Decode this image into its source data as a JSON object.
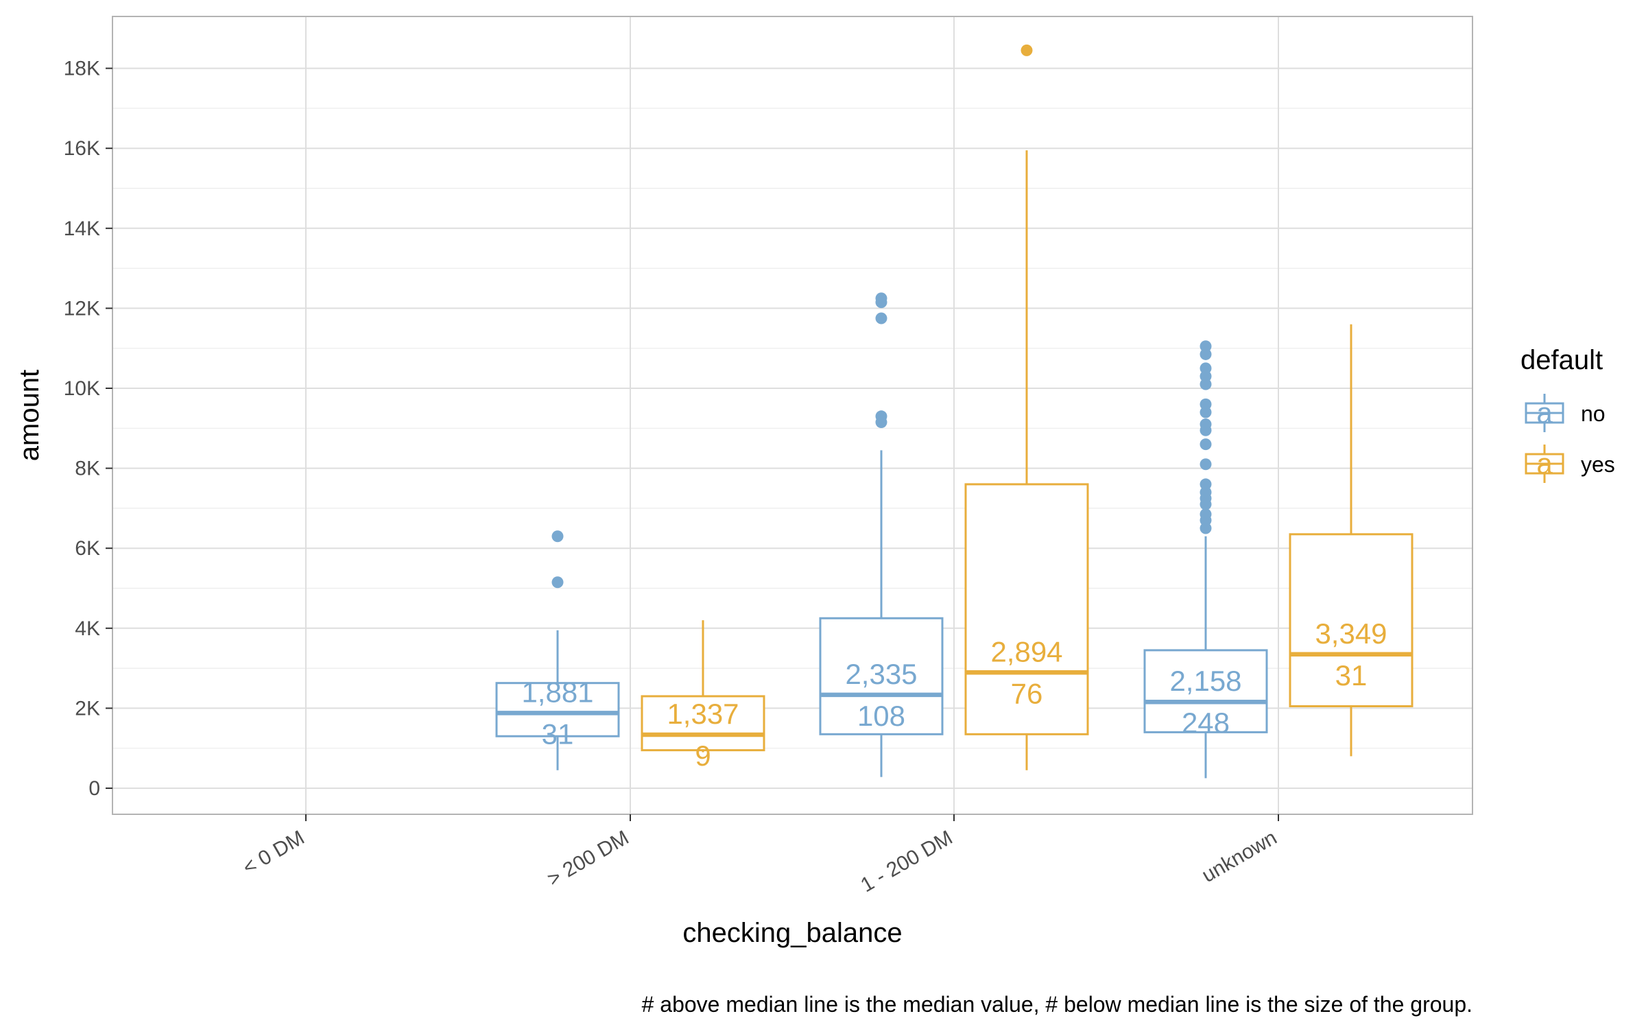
{
  "chart_data": {
    "type": "box",
    "xlabel": "checking_balance",
    "ylabel": "amount",
    "caption": "# above median line is the median value, # below median line is the size of the group.",
    "ylim": [
      -600,
      19700
    ],
    "yticks": [
      0,
      2000,
      4000,
      6000,
      8000,
      10000,
      12000,
      14000,
      16000,
      18000
    ],
    "ytick_labels": [
      "0",
      "2K",
      "4K",
      "6K",
      "8K",
      "10K",
      "12K",
      "14K",
      "16K",
      "18K"
    ],
    "categories": [
      "< 0 DM",
      "> 200 DM",
      "1 - 200 DM",
      "unknown"
    ],
    "grid": true,
    "legend": {
      "title": "default",
      "position": "right",
      "symbol": "a"
    },
    "series": [
      {
        "name": "no",
        "color": "#78a8d0",
        "boxes": [
          null,
          {
            "category": "> 200 DM",
            "whisker_low": 450,
            "q1": 1300,
            "median": 1881,
            "q3": 2630,
            "whisker_high": 3950,
            "n": 31,
            "median_label": "1,881",
            "n_label": "31",
            "outliers": [
              5150,
              6300
            ]
          },
          {
            "category": "1 - 200 DM",
            "whisker_low": 280,
            "q1": 1350,
            "median": 2335,
            "q3": 4250,
            "whisker_high": 8450,
            "n": 108,
            "median_label": "2,335",
            "n_label": "108",
            "outliers": [
              9150,
              9300,
              11750,
              12150,
              12250
            ]
          },
          {
            "category": "unknown",
            "whisker_low": 250,
            "q1": 1400,
            "median": 2158,
            "q3": 3450,
            "whisker_high": 6300,
            "n": 248,
            "median_label": "2,158",
            "n_label": "248",
            "outliers": [
              6500,
              6700,
              6850,
              7100,
              7250,
              7400,
              7600,
              8100,
              8600,
              8950,
              9100,
              9400,
              9600,
              10100,
              10300,
              10500,
              10850,
              11050
            ]
          }
        ]
      },
      {
        "name": "yes",
        "color": "#e8ae3c",
        "boxes": [
          null,
          {
            "category": "> 200 DM",
            "whisker_low": 900,
            "q1": 950,
            "median": 1337,
            "q3": 2300,
            "whisker_high": 4200,
            "n": 9,
            "median_label": "1,337",
            "n_label": "9",
            "outliers": []
          },
          {
            "category": "1 - 200 DM",
            "whisker_low": 450,
            "q1": 1350,
            "median": 2894,
            "q3": 7600,
            "whisker_high": 15950,
            "n": 76,
            "median_label": "2,894",
            "n_label": "76",
            "outliers": [
              18450
            ]
          },
          {
            "category": "unknown",
            "whisker_low": 800,
            "q1": 2050,
            "median": 3349,
            "q3": 6350,
            "whisker_high": 11600,
            "n": 31,
            "median_label": "3,349",
            "n_label": "31",
            "outliers": []
          }
        ]
      }
    ]
  }
}
